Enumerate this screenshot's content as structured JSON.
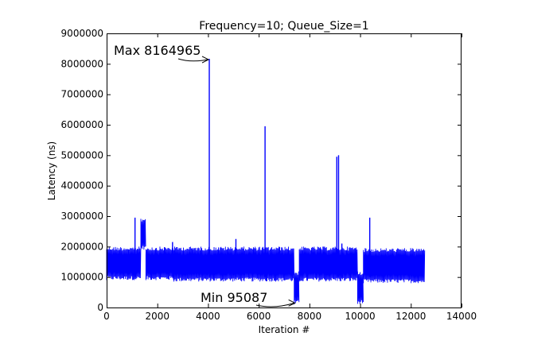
{
  "chart_data": {
    "type": "line",
    "title": "Frequency=10; Queue_Size=1",
    "xlabel": "Iteration #",
    "ylabel": "Latency (ns)",
    "xlim": [
      0,
      14000
    ],
    "ylim": [
      0,
      9000000
    ],
    "xticks": [
      0,
      2000,
      4000,
      6000,
      8000,
      10000,
      12000,
      14000
    ],
    "xtick_labels": [
      "0",
      "2000",
      "4000",
      "6000",
      "8000",
      "10000",
      "12000",
      "14000"
    ],
    "yticks": [
      0,
      1000000,
      2000000,
      3000000,
      4000000,
      5000000,
      6000000,
      7000000,
      8000000,
      9000000
    ],
    "ytick_labels": [
      "0",
      "1000000",
      "2000000",
      "3000000",
      "4000000",
      "5000000",
      "6000000",
      "7000000",
      "8000000",
      "9000000"
    ],
    "grid": false,
    "series_color": "#0000ff",
    "segments": [
      {
        "x_start": 0,
        "x_end": 1350,
        "low": 900000,
        "high": 2000000
      },
      {
        "x_start": 1350,
        "x_end": 1550,
        "low": 1900000,
        "high": 2950000
      },
      {
        "x_start": 1550,
        "x_end": 2650,
        "low": 900000,
        "high": 2000000
      },
      {
        "x_start": 2650,
        "x_end": 7400,
        "low": 850000,
        "high": 2000000
      },
      {
        "x_start": 7400,
        "x_end": 7600,
        "low": 100000,
        "high": 1200000
      },
      {
        "x_start": 7600,
        "x_end": 9900,
        "low": 850000,
        "high": 2000000
      },
      {
        "x_start": 9900,
        "x_end": 10130,
        "low": 120000,
        "high": 1200000
      },
      {
        "x_start": 10130,
        "x_end": 12550,
        "low": 800000,
        "high": 1950000
      }
    ],
    "spikes": [
      {
        "x": 1120,
        "y": 2950000
      },
      {
        "x": 2600,
        "y": 2150000
      },
      {
        "x": 4050,
        "y": 8164965
      },
      {
        "x": 5100,
        "y": 2250000
      },
      {
        "x": 6250,
        "y": 5950000
      },
      {
        "x": 9080,
        "y": 4950000
      },
      {
        "x": 9150,
        "y": 5000000
      },
      {
        "x": 9280,
        "y": 2100000
      },
      {
        "x": 10380,
        "y": 2950000
      }
    ],
    "annotations": [
      {
        "text": "Max 8164965",
        "point": [
          4050,
          8164965
        ]
      },
      {
        "text": "Min 95087",
        "point": [
          7460,
          95087
        ]
      }
    ]
  }
}
